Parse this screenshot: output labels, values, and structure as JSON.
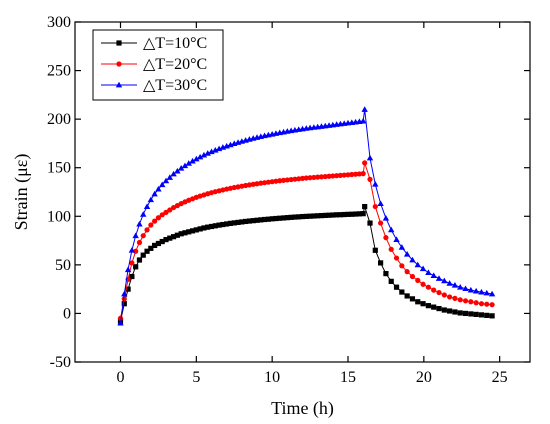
{
  "chart_data": {
    "type": "line",
    "xlabel": "Time (h)",
    "ylabel": "Strain (με)",
    "xlim": [
      -3,
      27
    ],
    "ylim": [
      -50,
      300
    ],
    "xticks": [
      0,
      5,
      10,
      15,
      20,
      25
    ],
    "yticks": [
      -50,
      0,
      50,
      100,
      150,
      200,
      250,
      300
    ],
    "legend_position": "top-left",
    "grid": false,
    "series": [
      {
        "name": "△T=10°C",
        "color": "#000000",
        "marker": "square",
        "x": [
          0,
          0.25,
          0.5,
          0.75,
          1,
          1.25,
          1.5,
          1.75,
          2,
          2.25,
          2.5,
          2.75,
          3,
          3.25,
          3.5,
          3.75,
          4,
          4.25,
          4.5,
          4.75,
          5,
          5.25,
          5.5,
          5.75,
          6,
          6.25,
          6.5,
          6.75,
          7,
          7.25,
          7.5,
          7.75,
          8,
          8.25,
          8.5,
          8.75,
          9,
          9.25,
          9.5,
          9.75,
          10,
          10.25,
          10.5,
          10.75,
          11,
          11.25,
          11.5,
          11.75,
          12,
          12.25,
          12.5,
          12.75,
          13,
          13.25,
          13.5,
          13.75,
          14,
          14.25,
          14.5,
          14.75,
          15,
          15.25,
          15.5,
          15.75,
          16,
          16.1,
          16.45,
          16.8,
          17.15,
          17.5,
          17.85,
          18.2,
          18.55,
          18.9,
          19.25,
          19.6,
          19.95,
          20.3,
          20.65,
          21,
          21.35,
          21.7,
          22.05,
          22.4,
          22.75,
          23.1,
          23.45,
          23.8,
          24.15,
          24.5
        ],
        "y": [
          -8,
          10,
          25,
          38,
          48,
          55,
          60,
          64,
          67,
          70,
          72,
          74,
          76,
          77.5,
          79,
          80.5,
          82,
          83,
          84,
          85,
          86,
          87,
          88,
          88.8,
          89.5,
          90.2,
          90.9,
          91.5,
          92.1,
          92.7,
          93.2,
          93.7,
          94.2,
          94.7,
          95.1,
          95.5,
          95.9,
          96.3,
          96.7,
          97,
          97.4,
          97.7,
          98,
          98.3,
          98.6,
          98.9,
          99.2,
          99.4,
          99.7,
          99.9,
          100.1,
          100.3,
          100.5,
          100.7,
          100.9,
          101.1,
          101.3,
          101.5,
          101.6,
          101.8,
          102,
          102.1,
          102.3,
          102.5,
          102.7,
          110,
          93,
          65,
          52,
          41,
          33,
          27,
          22,
          18,
          15,
          12,
          10,
          8,
          6.5,
          5,
          3.5,
          2.5,
          1.5,
          0.5,
          0,
          -0.5,
          -1,
          -1.5,
          -2,
          -2.5
        ]
      },
      {
        "name": "△T=20°C",
        "color": "#ff0000",
        "marker": "circle",
        "x": [
          0,
          0.25,
          0.5,
          0.75,
          1,
          1.25,
          1.5,
          1.75,
          2,
          2.25,
          2.5,
          2.75,
          3,
          3.25,
          3.5,
          3.75,
          4,
          4.25,
          4.5,
          4.75,
          5,
          5.25,
          5.5,
          5.75,
          6,
          6.25,
          6.5,
          6.75,
          7,
          7.25,
          7.5,
          7.75,
          8,
          8.25,
          8.5,
          8.75,
          9,
          9.25,
          9.5,
          9.75,
          10,
          10.25,
          10.5,
          10.75,
          11,
          11.25,
          11.5,
          11.75,
          12,
          12.25,
          12.5,
          12.75,
          13,
          13.25,
          13.5,
          13.75,
          14,
          14.25,
          14.5,
          14.75,
          15,
          15.25,
          15.5,
          15.75,
          16,
          16.1,
          16.45,
          16.8,
          17.15,
          17.5,
          17.85,
          18.2,
          18.55,
          18.9,
          19.25,
          19.6,
          19.95,
          20.3,
          20.65,
          21,
          21.35,
          21.7,
          22.05,
          22.4,
          22.75,
          23.1,
          23.45,
          23.8,
          24.15,
          24.5
        ],
        "y": [
          -5,
          15,
          35,
          52,
          64,
          73,
          80,
          86,
          91,
          95,
          98.5,
          101.5,
          104,
          106.5,
          109,
          111,
          113,
          114.8,
          116.5,
          118,
          119.5,
          120.8,
          122,
          123.2,
          124.3,
          125.3,
          126.2,
          127.1,
          128,
          128.8,
          129.6,
          130.3,
          131,
          131.7,
          132.3,
          132.9,
          133.5,
          134.1,
          134.6,
          135.1,
          135.6,
          136.1,
          136.6,
          137,
          137.4,
          137.8,
          138.2,
          138.6,
          139,
          139.4,
          139.7,
          140,
          140.3,
          140.6,
          140.9,
          141.2,
          141.5,
          141.8,
          142.1,
          142.4,
          142.7,
          143,
          143.3,
          143.6,
          143.9,
          155,
          138,
          110,
          93,
          78,
          66,
          57,
          49,
          43,
          38,
          34,
          30,
          27,
          24,
          21.5,
          19,
          17,
          15.5,
          14,
          13,
          12,
          11,
          10,
          9.5,
          9
        ]
      },
      {
        "name": "△T=30°C",
        "color": "#0000ff",
        "marker": "triangle",
        "x": [
          0,
          0.25,
          0.5,
          0.75,
          1,
          1.25,
          1.5,
          1.75,
          2,
          2.25,
          2.5,
          2.75,
          3,
          3.25,
          3.5,
          3.75,
          4,
          4.25,
          4.5,
          4.75,
          5,
          5.25,
          5.5,
          5.75,
          6,
          6.25,
          6.5,
          6.75,
          7,
          7.25,
          7.5,
          7.75,
          8,
          8.25,
          8.5,
          8.75,
          9,
          9.25,
          9.5,
          9.75,
          10,
          10.25,
          10.5,
          10.75,
          11,
          11.25,
          11.5,
          11.75,
          12,
          12.25,
          12.5,
          12.75,
          13,
          13.25,
          13.5,
          13.75,
          14,
          14.25,
          14.5,
          14.75,
          15,
          15.25,
          15.5,
          15.75,
          16,
          16.1,
          16.45,
          16.8,
          17.15,
          17.5,
          17.85,
          18.2,
          18.55,
          18.9,
          19.25,
          19.6,
          19.95,
          20.3,
          20.65,
          21,
          21.35,
          21.7,
          22.05,
          22.4,
          22.75,
          23.1,
          23.45,
          23.8,
          24.15,
          24.5
        ],
        "y": [
          -10,
          20,
          45,
          65,
          80,
          92,
          102,
          110,
          117,
          123,
          128,
          132.5,
          136.5,
          140,
          143.5,
          146.5,
          149.5,
          152,
          154.5,
          156.8,
          159,
          161,
          163,
          164.8,
          166.5,
          168,
          169.5,
          171,
          172.3,
          173.6,
          174.8,
          176,
          177.1,
          178.2,
          179.2,
          180.2,
          181.1,
          182,
          182.9,
          183.7,
          184.5,
          185.3,
          186,
          186.7,
          187.4,
          188.1,
          188.7,
          189.3,
          189.9,
          190.5,
          191,
          191.5,
          192,
          192.5,
          193,
          193.5,
          194,
          194.5,
          195,
          195.5,
          196,
          196.5,
          197,
          197.5,
          198,
          210,
          160,
          133,
          113,
          98,
          86,
          76,
          68,
          61,
          55,
          50,
          46,
          42,
          39,
          36,
          33.5,
          31,
          29,
          27,
          25.5,
          24,
          23,
          22,
          21,
          20
        ]
      }
    ]
  }
}
